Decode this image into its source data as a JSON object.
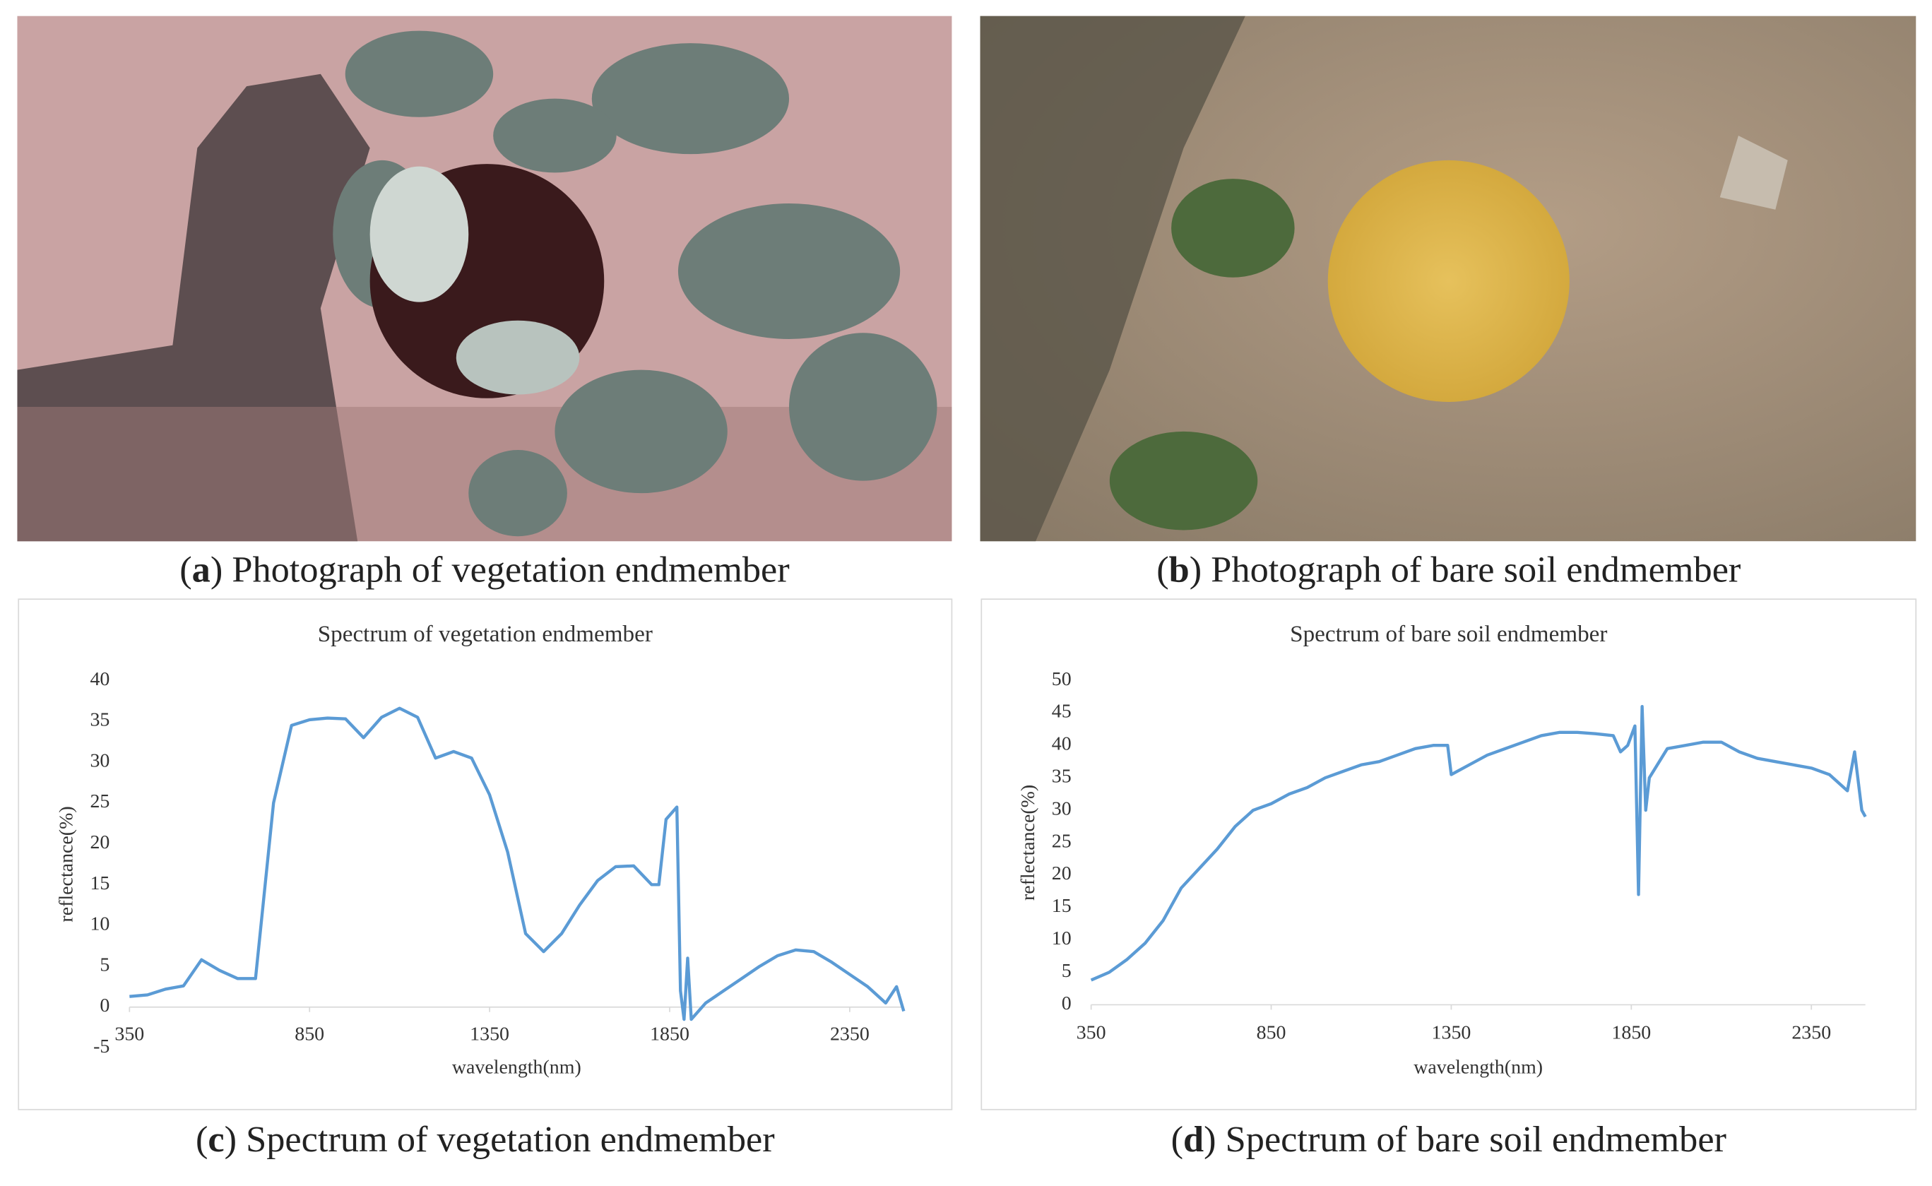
{
  "photos": [
    {
      "caption": [
        "(",
        "a",
        ") Photograph of vegetation endmember"
      ]
    },
    {
      "caption": [
        "(",
        "b",
        ") Photograph of bare soil endmember"
      ]
    }
  ],
  "chart_data": [
    {
      "type": "line",
      "title": "Spectrum of vegetation endmember",
      "caption": [
        "(",
        "c",
        ") Spectrum of vegetation endmember"
      ],
      "xlabel": "wavelength(nm)",
      "ylabel": "reflectance(%)",
      "color": "#5b9bd5",
      "grid": false,
      "xlim": [
        350,
        2500
      ],
      "xticks": [
        350,
        850,
        1350,
        1850,
        2350
      ],
      "ylim": [
        -5,
        40
      ],
      "yticks": [
        -5,
        0,
        5,
        10,
        15,
        20,
        25,
        30,
        35,
        40
      ],
      "x": [
        350,
        400,
        450,
        500,
        550,
        600,
        650,
        700,
        750,
        800,
        850,
        900,
        950,
        1000,
        1050,
        1100,
        1150,
        1200,
        1250,
        1300,
        1350,
        1400,
        1450,
        1500,
        1550,
        1600,
        1650,
        1700,
        1750,
        1800,
        1820,
        1840,
        1860,
        1870,
        1880,
        1890,
        1900,
        1910,
        1950,
        2000,
        2050,
        2100,
        2150,
        2200,
        2250,
        2300,
        2350,
        2400,
        2450,
        2480,
        2500
      ],
      "values": [
        1.3,
        1.5,
        2.2,
        2.6,
        5.8,
        4.5,
        3.5,
        3.5,
        25,
        34.5,
        35.2,
        35.4,
        35.3,
        33,
        35.5,
        36.6,
        35.5,
        30.5,
        31.3,
        30.5,
        26,
        19,
        9,
        6.8,
        9,
        12.5,
        15.5,
        17.2,
        17.3,
        15,
        15,
        23,
        24,
        24.5,
        2,
        -1.5,
        6,
        -1.5,
        0.5,
        2,
        3.5,
        5,
        6.3,
        7,
        6.8,
        5.5,
        4,
        2.5,
        0.5,
        2.5,
        -0.5
      ]
    },
    {
      "type": "line",
      "title": "Spectrum of bare soil endmember",
      "caption": [
        "(",
        "d",
        ") Spectrum of bare soil endmember"
      ],
      "xlabel": "wavelength(nm)",
      "ylabel": "reflectance(%)",
      "color": "#5b9bd5",
      "grid": false,
      "xlim": [
        350,
        2500
      ],
      "xticks": [
        350,
        850,
        1350,
        1850,
        2350
      ],
      "ylim": [
        0,
        50
      ],
      "yticks": [
        0,
        5,
        10,
        15,
        20,
        25,
        30,
        35,
        40,
        45,
        50
      ],
      "x": [
        350,
        400,
        450,
        500,
        550,
        600,
        650,
        700,
        750,
        800,
        850,
        900,
        950,
        1000,
        1050,
        1100,
        1150,
        1200,
        1250,
        1300,
        1340,
        1350,
        1400,
        1450,
        1500,
        1550,
        1600,
        1650,
        1700,
        1750,
        1800,
        1820,
        1840,
        1860,
        1870,
        1880,
        1890,
        1900,
        1950,
        2000,
        2050,
        2100,
        2150,
        2200,
        2250,
        2300,
        2350,
        2400,
        2450,
        2470,
        2490,
        2500
      ],
      "values": [
        3.8,
        5,
        7,
        9.5,
        13,
        18,
        21,
        24,
        27.5,
        30,
        31,
        32.5,
        33.5,
        35,
        36,
        37,
        37.5,
        38.5,
        39.5,
        40,
        40,
        35.5,
        37,
        38.5,
        39.5,
        40.5,
        41.5,
        42,
        42,
        41.8,
        41.5,
        39,
        40,
        43,
        17,
        46,
        30,
        35,
        39.5,
        40,
        40.5,
        40.5,
        39,
        38,
        37.5,
        37,
        36.5,
        35.5,
        33,
        39,
        30,
        29
      ]
    }
  ]
}
